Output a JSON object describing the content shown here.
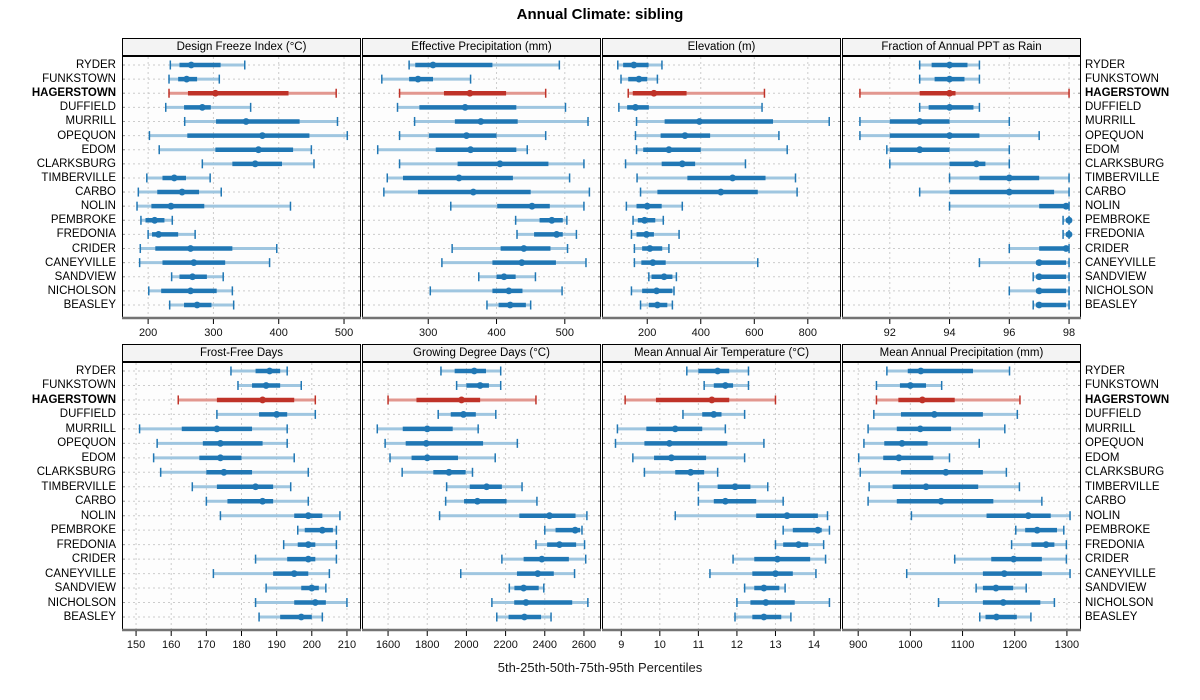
{
  "title": "Annual Climate: sibling",
  "caption": "5th-25th-50th-75th-95th Percentiles",
  "highlight_station": "HAGERSTOWN",
  "colors": {
    "normal": "#2077b4",
    "normal_light": "#9fc6e0",
    "highlight": "#bf3228",
    "highlight_light": "#e2978f",
    "grid": "#cccccc",
    "axis_line": "#737373",
    "panel_bg": "#fdfdfd",
    "strip_bg": "#f3f3f3"
  },
  "stations": [
    "RYDER",
    "FUNKSTOWN",
    "HAGERSTOWN",
    "DUFFIELD",
    "MURRILL",
    "OPEQUON",
    "EDOM",
    "CLARKSBURG",
    "TIMBERVILLE",
    "CARBO",
    "NOLIN",
    "PEMBROKE",
    "FREDONIA",
    "CRIDER",
    "CANEYVILLE",
    "SANDVIEW",
    "NICHOLSON",
    "BEASLEY"
  ],
  "chart_data": {
    "type": "scatter",
    "subtype": "percentile-interval-dotplot",
    "percentiles": [
      5,
      25,
      50,
      75,
      95
    ],
    "legend_note": "thin light band = 5th-95th, thick band = 25th-75th, dot = median; HAGERSTOWN highlighted red",
    "panels": [
      {
        "title": "Design Freeze Index (°C)",
        "xlim": [
          160,
          526
        ],
        "ticks": [
          200,
          300,
          400,
          500
        ],
        "values": [
          [
            234,
            248,
            266,
            311,
            348
          ],
          [
            232,
            246,
            259,
            275,
            309
          ],
          [
            232,
            261,
            303,
            415,
            488
          ],
          [
            227,
            255,
            283,
            296,
            357
          ],
          [
            256,
            304,
            350,
            432,
            490
          ],
          [
            202,
            260,
            375,
            447,
            505
          ],
          [
            217,
            303,
            369,
            422,
            450
          ],
          [
            283,
            329,
            364,
            405,
            454
          ],
          [
            198,
            222,
            240,
            258,
            295
          ],
          [
            185,
            214,
            252,
            278,
            312
          ],
          [
            183,
            205,
            235,
            286,
            418
          ],
          [
            189,
            196,
            210,
            225,
            237
          ],
          [
            200,
            206,
            216,
            246,
            272
          ],
          [
            188,
            211,
            265,
            329,
            397
          ],
          [
            187,
            222,
            270,
            318,
            386
          ],
          [
            236,
            248,
            268,
            290,
            315
          ],
          [
            201,
            220,
            265,
            305,
            329
          ],
          [
            233,
            255,
            275,
            297,
            331
          ]
        ]
      },
      {
        "title": "Effective Precipitation (mm)",
        "xlim": [
          203,
          553
        ],
        "ticks": [
          300,
          400,
          500
        ],
        "values": [
          [
            272,
            281,
            307,
            394,
            492
          ],
          [
            232,
            272,
            285,
            307,
            362
          ],
          [
            258,
            323,
            361,
            414,
            472
          ],
          [
            255,
            287,
            354,
            429,
            501
          ],
          [
            280,
            339,
            377,
            431,
            534
          ],
          [
            258,
            301,
            356,
            400,
            472
          ],
          [
            226,
            311,
            362,
            429,
            445
          ],
          [
            258,
            343,
            405,
            476,
            528
          ],
          [
            240,
            263,
            345,
            424,
            507
          ],
          [
            235,
            285,
            366,
            450,
            536
          ],
          [
            333,
            401,
            452,
            478,
            528
          ],
          [
            428,
            463,
            481,
            497,
            503
          ],
          [
            430,
            455,
            488,
            497,
            517
          ],
          [
            335,
            406,
            440,
            479,
            504
          ],
          [
            320,
            394,
            437,
            487,
            531
          ],
          [
            374,
            400,
            411,
            428,
            457
          ],
          [
            303,
            394,
            418,
            438,
            496
          ],
          [
            386,
            403,
            420,
            443,
            450
          ]
        ]
      },
      {
        "title": "Elevation (m)",
        "xlim": [
          31,
          924
        ],
        "ticks": [
          200,
          400,
          600,
          800
        ],
        "values": [
          [
            90,
            110,
            150,
            205,
            255
          ],
          [
            102,
            129,
            169,
            200,
            238
          ],
          [
            129,
            146,
            225,
            347,
            638
          ],
          [
            94,
            125,
            156,
            206,
            629
          ],
          [
            160,
            265,
            395,
            670,
            880
          ],
          [
            156,
            250,
            341,
            435,
            692
          ],
          [
            160,
            185,
            281,
            400,
            723
          ],
          [
            119,
            254,
            331,
            379,
            567
          ],
          [
            162,
            350,
            519,
            642,
            754
          ],
          [
            175,
            238,
            475,
            613,
            760
          ],
          [
            122,
            160,
            200,
            254,
            331
          ],
          [
            147,
            165,
            190,
            230,
            260
          ],
          [
            141,
            160,
            197,
            225,
            319
          ],
          [
            152,
            181,
            210,
            256,
            281
          ],
          [
            152,
            178,
            221,
            269,
            613
          ],
          [
            206,
            216,
            263,
            294,
            309
          ],
          [
            141,
            181,
            235,
            294,
            300
          ],
          [
            175,
            206,
            238,
            275,
            294
          ]
        ]
      },
      {
        "title": "Fraction of Annual PPT as Rain",
        "xlim": [
          90.4,
          98.4
        ],
        "ticks": [
          92,
          94,
          96,
          98
        ],
        "values": [
          [
            93.0,
            93.4,
            94.0,
            94.6,
            95.0
          ],
          [
            93.0,
            93.5,
            94.0,
            94.5,
            95.0
          ],
          [
            91.0,
            93.0,
            94.0,
            94.2,
            98.0
          ],
          [
            93.0,
            93.3,
            94.0,
            94.8,
            95.0
          ],
          [
            91.0,
            92.0,
            93.0,
            94.0,
            96.0
          ],
          [
            91.0,
            92.0,
            94.0,
            95.0,
            97.0
          ],
          [
            91.9,
            92.0,
            93.0,
            94.0,
            96.0
          ],
          [
            92.0,
            94.0,
            94.9,
            95.2,
            96.0
          ],
          [
            94.0,
            95.0,
            96.0,
            97.0,
            98.0
          ],
          [
            93.0,
            94.0,
            96.0,
            97.5,
            98.0
          ],
          [
            94.0,
            97.0,
            97.9,
            98.0,
            98.0
          ],
          [
            97.8,
            97.9,
            98.0,
            98.0,
            98.0
          ],
          [
            97.8,
            97.9,
            98.0,
            98.0,
            98.0
          ],
          [
            96.0,
            97.0,
            97.9,
            98.0,
            98.0
          ],
          [
            95.0,
            96.9,
            97.0,
            97.9,
            98.0
          ],
          [
            96.8,
            96.9,
            97.0,
            97.9,
            98.0
          ],
          [
            96.0,
            96.9,
            97.0,
            97.9,
            98.0
          ],
          [
            96.8,
            96.9,
            97.0,
            97.9,
            98.0
          ]
        ]
      },
      {
        "title": "Frost-Free Days",
        "xlim": [
          146,
          214
        ],
        "ticks": [
          150,
          160,
          170,
          180,
          190,
          200,
          210
        ],
        "values": [
          [
            177,
            184,
            188,
            191,
            193
          ],
          [
            179,
            183,
            187,
            191,
            197
          ],
          [
            162,
            173,
            186,
            195,
            201
          ],
          [
            173,
            185,
            190,
            193,
            201
          ],
          [
            151,
            163,
            173,
            183,
            193
          ],
          [
            156,
            169,
            174,
            186,
            193
          ],
          [
            155,
            168,
            174,
            180,
            195
          ],
          [
            157,
            170,
            175,
            183,
            199
          ],
          [
            166,
            173,
            184,
            189,
            194
          ],
          [
            170,
            176,
            186,
            189,
            199
          ],
          [
            174,
            195,
            199,
            203,
            208
          ],
          [
            196,
            198,
            203,
            206,
            207
          ],
          [
            192,
            196,
            199,
            201,
            207
          ],
          [
            184,
            193,
            199,
            201,
            207
          ],
          [
            172,
            189,
            195,
            199,
            205
          ],
          [
            187,
            197,
            200,
            202,
            204
          ],
          [
            184,
            195,
            201,
            204,
            210
          ],
          [
            185,
            191,
            197,
            200,
            203
          ]
        ]
      },
      {
        "title": "Growing Degree Days (°C)",
        "xlim": [
          1467,
          2687
        ],
        "ticks": [
          1600,
          1800,
          2000,
          2200,
          2400,
          2600
        ],
        "values": [
          [
            1870,
            1940,
            2040,
            2100,
            2175
          ],
          [
            1950,
            2000,
            2070,
            2115,
            2175
          ],
          [
            1600,
            1745,
            1975,
            2070,
            2355
          ],
          [
            1856,
            1920,
            1985,
            2048,
            2150
          ],
          [
            1545,
            1675,
            1800,
            1930,
            2060
          ],
          [
            1585,
            1690,
            1795,
            2085,
            2260
          ],
          [
            1610,
            1720,
            1800,
            1957,
            2147
          ],
          [
            1672,
            1831,
            1911,
            1996,
            2031
          ],
          [
            1899,
            2017,
            2103,
            2181,
            2284
          ],
          [
            1894,
            1988,
            2056,
            2205,
            2360
          ],
          [
            1863,
            2270,
            2424,
            2557,
            2615
          ],
          [
            2400,
            2455,
            2555,
            2580,
            2590
          ],
          [
            2355,
            2412,
            2475,
            2560,
            2603
          ],
          [
            2181,
            2292,
            2385,
            2523,
            2609
          ],
          [
            1971,
            2258,
            2364,
            2446,
            2552
          ],
          [
            2219,
            2245,
            2292,
            2369,
            2395
          ],
          [
            2130,
            2244,
            2304,
            2540,
            2620
          ],
          [
            2155,
            2215,
            2296,
            2381,
            2432
          ]
        ]
      },
      {
        "title": "Mean Annual Air Temperature (°C)",
        "xlim": [
          8.5,
          14.7
        ],
        "ticks": [
          9,
          10,
          11,
          12,
          13,
          14
        ],
        "values": [
          [
            10.7,
            11.0,
            11.5,
            11.8,
            12.3
          ],
          [
            11.15,
            11.4,
            11.7,
            11.9,
            12.3
          ],
          [
            9.1,
            9.9,
            11.35,
            11.8,
            13.0
          ],
          [
            10.6,
            11.1,
            11.4,
            11.6,
            12.2
          ],
          [
            8.9,
            9.65,
            10.4,
            11.1,
            11.7
          ],
          [
            8.85,
            9.6,
            10.25,
            11.75,
            12.7
          ],
          [
            9.3,
            9.85,
            10.3,
            11.2,
            12.2
          ],
          [
            9.6,
            10.4,
            10.8,
            11.15,
            11.5
          ],
          [
            11.0,
            11.5,
            11.95,
            12.35,
            12.8
          ],
          [
            11.0,
            11.4,
            11.7,
            12.5,
            13.2
          ],
          [
            10.4,
            12.5,
            13.3,
            14.1,
            14.35
          ],
          [
            13.2,
            13.45,
            14.1,
            14.2,
            14.4
          ],
          [
            13.0,
            13.2,
            13.6,
            13.85,
            14.25
          ],
          [
            11.9,
            12.45,
            13.05,
            13.9,
            14.3
          ],
          [
            11.3,
            12.4,
            13.0,
            13.45,
            14.05
          ],
          [
            12.2,
            12.45,
            12.7,
            13.1,
            13.25
          ],
          [
            12.0,
            12.35,
            12.75,
            13.5,
            14.4
          ],
          [
            11.95,
            12.4,
            12.7,
            13.15,
            13.4
          ]
        ]
      },
      {
        "title": "Mean Annual Precipitation (mm)",
        "xlim": [
          869,
          1327
        ],
        "ticks": [
          900,
          1000,
          1100,
          1200,
          1300
        ],
        "values": [
          [
            955,
            995,
            1020,
            1120,
            1190
          ],
          [
            935,
            980,
            1000,
            1030,
            1060
          ],
          [
            935,
            977,
            1023,
            1085,
            1210
          ],
          [
            930,
            982,
            1046,
            1139,
            1205
          ],
          [
            919,
            974,
            1019,
            1078,
            1181
          ],
          [
            911,
            950,
            984,
            1033,
            1132
          ],
          [
            901,
            948,
            978,
            1044,
            1075
          ],
          [
            904,
            982,
            1068,
            1139,
            1184
          ],
          [
            921,
            966,
            1030,
            1130,
            1209
          ],
          [
            919,
            974,
            1059,
            1159,
            1252
          ],
          [
            1002,
            1146,
            1226,
            1269,
            1306
          ],
          [
            1202,
            1220,
            1243,
            1281,
            1294
          ],
          [
            1194,
            1232,
            1260,
            1276,
            1299
          ],
          [
            1085,
            1155,
            1198,
            1252,
            1299
          ],
          [
            993,
            1139,
            1180,
            1252,
            1306
          ],
          [
            1126,
            1139,
            1164,
            1197,
            1222
          ],
          [
            1054,
            1139,
            1178,
            1249,
            1276
          ],
          [
            1133,
            1144,
            1165,
            1204,
            1231
          ]
        ]
      }
    ]
  }
}
